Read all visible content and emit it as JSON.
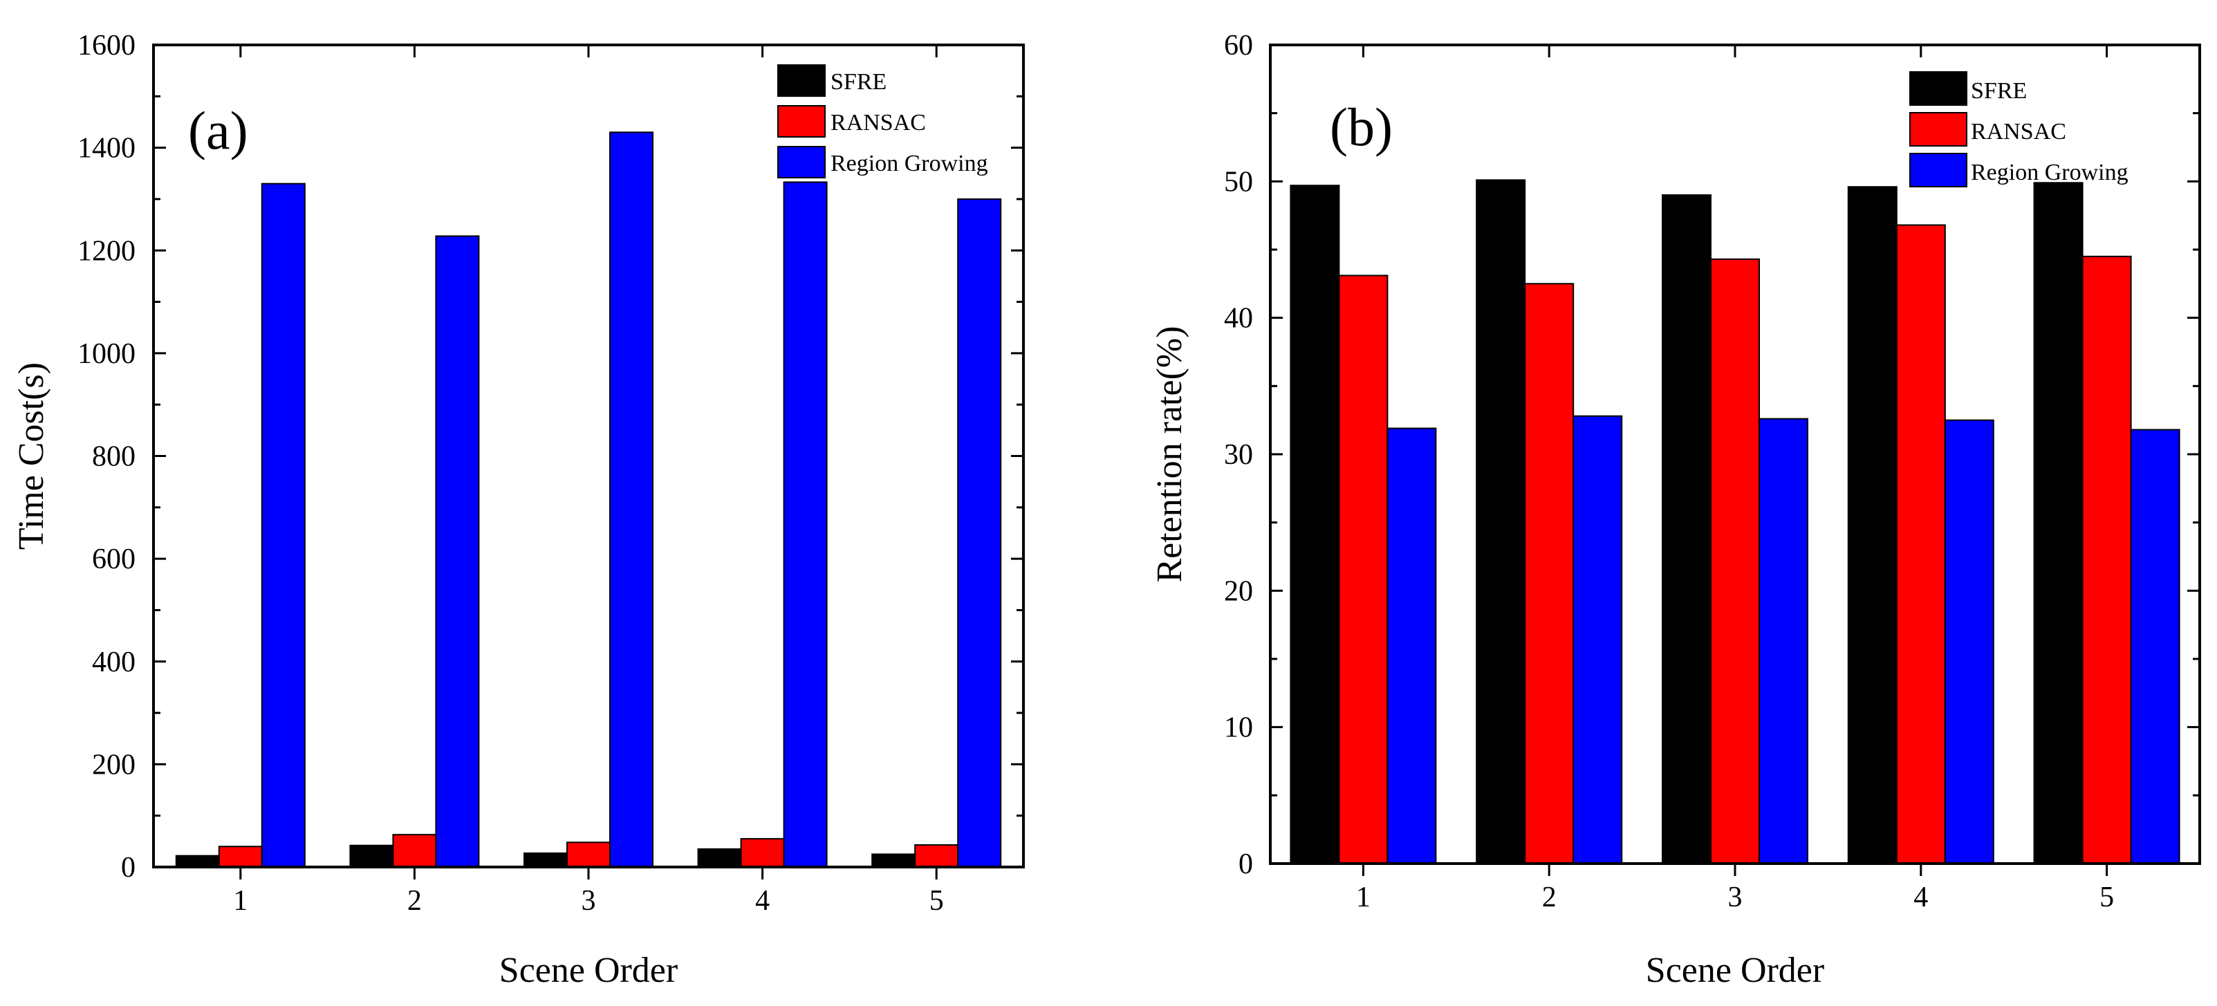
{
  "chart_data": [
    {
      "type": "bar",
      "panel_label": "(a)",
      "categories": [
        "1",
        "2",
        "3",
        "4",
        "5"
      ],
      "series": [
        {
          "name": "SFRE",
          "color": "#000000",
          "values": [
            22,
            42,
            27,
            35,
            25
          ]
        },
        {
          "name": "RANSAC",
          "color": "#ff0000",
          "values": [
            40,
            63,
            48,
            55,
            43
          ]
        },
        {
          "name": "Region Growing",
          "color": "#0000ff",
          "values": [
            1330,
            1228,
            1430,
            1333,
            1300
          ]
        }
      ],
      "xlabel": "Scene Order",
      "ylabel": "Time Cost(s)",
      "ylim": [
        0,
        1600
      ],
      "yticks": [
        0,
        200,
        400,
        600,
        800,
        1000,
        1200,
        1400,
        1600
      ],
      "legend_position": "top-right",
      "grid": false
    },
    {
      "type": "bar",
      "panel_label": "(b)",
      "categories": [
        "1",
        "2",
        "3",
        "4",
        "5"
      ],
      "series": [
        {
          "name": "SFRE",
          "color": "#000000",
          "values": [
            49.7,
            50.1,
            49.0,
            49.6,
            49.9
          ]
        },
        {
          "name": "RANSAC",
          "color": "#ff0000",
          "values": [
            43.1,
            42.5,
            44.3,
            46.8,
            44.5
          ]
        },
        {
          "name": "Region Growing",
          "color": "#0000ff",
          "values": [
            31.9,
            32.8,
            32.6,
            32.5,
            31.8
          ]
        }
      ],
      "xlabel": "Scene Order",
      "ylabel": "Retention rate(%)",
      "ylim": [
        0,
        60
      ],
      "yticks": [
        0,
        10,
        20,
        30,
        40,
        50,
        60
      ],
      "legend_position": "top-right",
      "grid": false
    }
  ]
}
